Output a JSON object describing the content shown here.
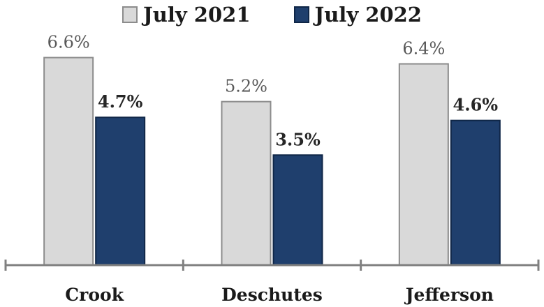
{
  "chart_data": {
    "type": "bar",
    "categories": [
      "Crook",
      "Deschutes",
      "Jefferson"
    ],
    "series": [
      {
        "name": "July 2021",
        "values": [
          6.6,
          5.2,
          6.4
        ],
        "labels": [
          "6.6%",
          "5.2%",
          "6.4%"
        ],
        "color": "#d9d9d9",
        "edge_color": "#8c8c8c",
        "label_color": "#595959",
        "label_bold": false
      },
      {
        "name": "July 2022",
        "values": [
          4.7,
          3.5,
          4.6
        ],
        "labels": [
          "4.7%",
          "3.5%",
          "4.6%"
        ],
        "color": "#1f3f6d",
        "edge_color": "#0f2647",
        "label_color": "#262626",
        "label_bold": true
      }
    ],
    "ylim": [
      0,
      7.1
    ],
    "grid": false,
    "legend_position": "top-center",
    "axis_color": "#808080"
  }
}
